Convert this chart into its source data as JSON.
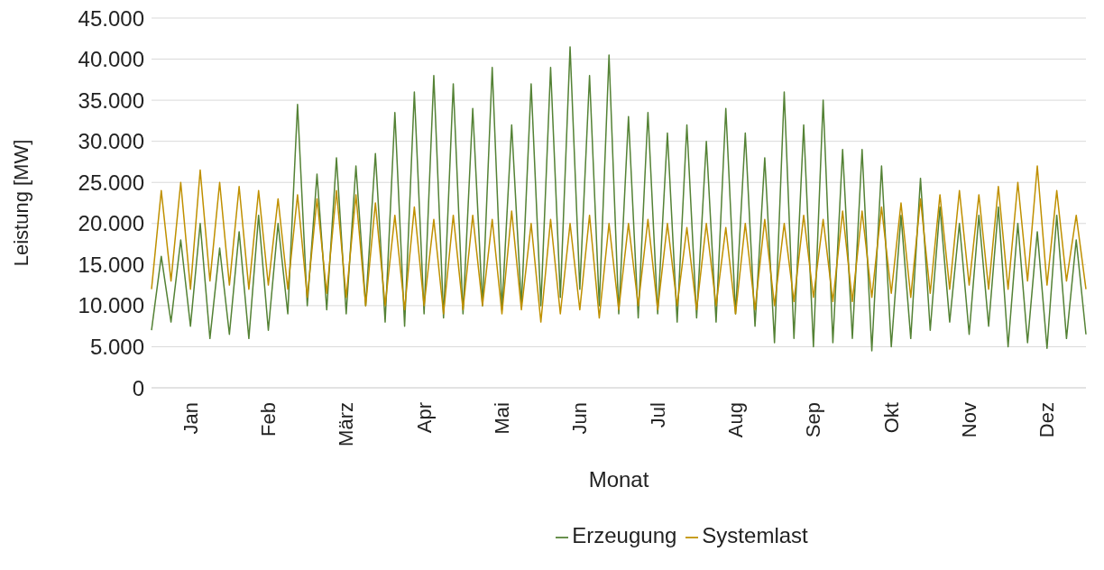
{
  "chart_data": {
    "type": "line",
    "xlabel": "Monat",
    "ylabel": "Leistung [MW]",
    "categories": [
      null,
      null,
      null,
      null,
      "Jan",
      null,
      null,
      null,
      null,
      null,
      null,
      null,
      "Feb",
      null,
      null,
      null,
      null,
      null,
      null,
      null,
      "März",
      null,
      null,
      null,
      null,
      null,
      null,
      null,
      "Apr",
      null,
      null,
      null,
      null,
      null,
      null,
      null,
      "Mai",
      null,
      null,
      null,
      null,
      null,
      null,
      null,
      "Jun",
      null,
      null,
      null,
      null,
      null,
      null,
      null,
      "Jul",
      null,
      null,
      null,
      null,
      null,
      null,
      null,
      "Aug",
      null,
      null,
      null,
      null,
      null,
      null,
      null,
      "Sep",
      null,
      null,
      null,
      null,
      null,
      null,
      null,
      "Okt",
      null,
      null,
      null,
      null,
      null,
      null,
      null,
      "Nov",
      null,
      null,
      null,
      null,
      null,
      null,
      null,
      "Dez",
      null,
      null,
      null,
      null
    ],
    "series": [
      {
        "name": "Erzeugung",
        "color": "#548235",
        "values": [
          7000,
          16000,
          8000,
          18000,
          7500,
          20000,
          6000,
          17000,
          6500,
          19000,
          6000,
          21000,
          7000,
          20000,
          9000,
          34500,
          10000,
          26000,
          9500,
          28000,
          9000,
          27000,
          10000,
          28500,
          8000,
          33500,
          7500,
          36000,
          9000,
          38000,
          8500,
          37000,
          9000,
          34000,
          10000,
          39000,
          9500,
          32000,
          10000,
          37000,
          10000,
          39000,
          11000,
          41500,
          12000,
          38000,
          10000,
          40500,
          9000,
          33000,
          8500,
          33500,
          9000,
          31000,
          8000,
          32000,
          8500,
          30000,
          8000,
          34000,
          9000,
          31000,
          7500,
          28000,
          5500,
          36000,
          6000,
          32000,
          5000,
          35000,
          5500,
          29000,
          6000,
          29000,
          4500,
          27000,
          5000,
          21000,
          6000,
          25500,
          7000,
          22000,
          8000,
          20000,
          6500,
          21000,
          7500,
          22000,
          5000,
          20000,
          5500,
          19000,
          4800,
          21000,
          6000,
          18000,
          6500
        ]
      },
      {
        "name": "Systemlast",
        "color": "#bf9000",
        "values": [
          12000,
          24000,
          13000,
          25000,
          12000,
          26500,
          13000,
          25000,
          12500,
          24500,
          12000,
          24000,
          12500,
          23000,
          12000,
          23500,
          11000,
          23000,
          11500,
          24000,
          11000,
          23500,
          10000,
          22500,
          10000,
          21000,
          9500,
          22000,
          10000,
          20500,
          9000,
          21000,
          9500,
          21000,
          10000,
          20500,
          9000,
          21500,
          9500,
          20000,
          8000,
          20500,
          9000,
          20000,
          9500,
          21000,
          8500,
          20000,
          9500,
          20000,
          10000,
          20500,
          9500,
          20000,
          10000,
          19500,
          9500,
          20000,
          10000,
          19500,
          9000,
          20000,
          9500,
          20500,
          10000,
          20000,
          10500,
          21000,
          11000,
          20500,
          10500,
          21500,
          10500,
          21500,
          11000,
          22000,
          11500,
          22500,
          11000,
          23000,
          11500,
          23500,
          12000,
          24000,
          12500,
          23500,
          12000,
          24500,
          12000,
          25000,
          13000,
          27000,
          12500,
          24000,
          13000,
          21000,
          12000
        ]
      }
    ],
    "ylim": [
      0,
      45000
    ],
    "yticks": [
      {
        "value": 0,
        "label": "0"
      },
      {
        "value": 5000,
        "label": "5.000"
      },
      {
        "value": 10000,
        "label": "10.000"
      },
      {
        "value": 15000,
        "label": "15.000"
      },
      {
        "value": 20000,
        "label": "20.000"
      },
      {
        "value": 25000,
        "label": "25.000"
      },
      {
        "value": 30000,
        "label": "30.000"
      },
      {
        "value": 35000,
        "label": "35.000"
      },
      {
        "value": 40000,
        "label": "40.000"
      },
      {
        "value": 45000,
        "label": "45.000"
      }
    ],
    "grid": "y",
    "legend": "bottom",
    "marker": "none",
    "line_style": "solid"
  }
}
